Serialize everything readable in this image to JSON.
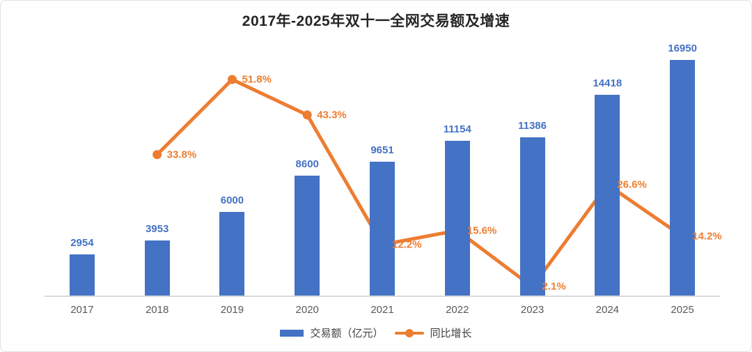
{
  "chart_data": {
    "type": "bar+line",
    "title": "2017年-2025年双十一全网交易额及增速",
    "categories": [
      "2017",
      "2018",
      "2019",
      "2020",
      "2021",
      "2022",
      "2023",
      "2024",
      "2025"
    ],
    "series": [
      {
        "name": "交易额（亿元）",
        "type": "bar",
        "color": "#4472C4",
        "values": [
          2954,
          3953,
          6000,
          8600,
          9651,
          11154,
          11386,
          14418,
          16950
        ],
        "data_labels": [
          "2954",
          "3953",
          "6000",
          "8600",
          "9651",
          "11154",
          "11386",
          "14418",
          "16950"
        ]
      },
      {
        "name": "同比增长",
        "type": "line",
        "color": "#ED7D31",
        "values": [
          null,
          33.8,
          51.8,
          43.3,
          12.2,
          15.6,
          2.1,
          26.6,
          14.2
        ],
        "data_labels": [
          "",
          "33.8%",
          "51.8%",
          "43.3%",
          "12.2%",
          "15.6%",
          "2.1%",
          "26.6%",
          "14.2%"
        ]
      }
    ],
    "axes": {
      "bar_axis_max": 18000,
      "pct_axis_max": 60,
      "axis_tick_labels_visible": false,
      "x_axis_line_color": "#d9d9d9",
      "x_tick_label_color": "#595959"
    },
    "grid": false,
    "legend_position": "bottom",
    "background_color": "#ffffff"
  }
}
